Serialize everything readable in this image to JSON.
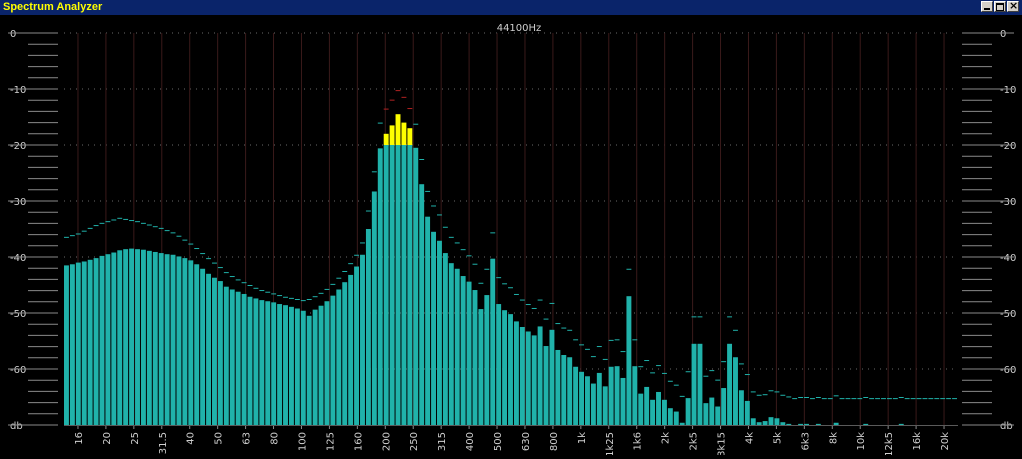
{
  "window": {
    "title": "Spectrum Analyzer",
    "buttons": [
      "minimize",
      "maximize",
      "close"
    ]
  },
  "colors": {
    "background": "#000000",
    "bar": "#20b2aa",
    "bar_top": "#1cc7c0",
    "clip": "#ffff00",
    "peak": "#20b2aa",
    "peak_hot": "#b22222",
    "grid": "#3a3a3a",
    "vgrid": "#3a1a1a",
    "label": "#d0d0d0",
    "title_bg": "#0a246a",
    "title_fg": "#ffff00"
  },
  "chart_data": {
    "type": "bar",
    "sample_rate_label": "44100Hz",
    "ylim": [
      -70,
      0
    ],
    "y_ticks": [
      "0",
      "-10",
      "-20",
      "-30",
      "-40",
      "-50",
      "-60",
      "db"
    ],
    "y_tick_values": [
      0,
      -10,
      -20,
      -30,
      -40,
      -50,
      -60,
      -70
    ],
    "clip_threshold": -20,
    "x_ticks": [
      "16",
      "20",
      "25",
      "31.5",
      "40",
      "50",
      "63",
      "80",
      "100",
      "125",
      "160",
      "200",
      "250",
      "315",
      "400",
      "500",
      "630",
      "800",
      "1k",
      "1k25",
      "1k6",
      "2k",
      "2k5",
      "3k15",
      "4k",
      "5k",
      "6k3",
      "8k",
      "10k",
      "12k5",
      "16k",
      "20k"
    ],
    "values": [
      -41.5,
      -41.3,
      -41,
      -40.8,
      -40.5,
      -40.2,
      -39.8,
      -39.5,
      -39.2,
      -38.8,
      -38.6,
      -38.5,
      -38.6,
      -38.7,
      -38.9,
      -39.1,
      -39.3,
      -39.5,
      -39.6,
      -39.9,
      -40.2,
      -40.6,
      -41.3,
      -42.1,
      -43,
      -43.7,
      -44.3,
      -45.3,
      -45.8,
      -46.2,
      -46.6,
      -47.1,
      -47.4,
      -47.7,
      -47.9,
      -48.1,
      -48.4,
      -48.6,
      -48.9,
      -49.2,
      -49.6,
      -50.5,
      -49.4,
      -48.7,
      -47.9,
      -46.9,
      -45.8,
      -44.5,
      -43.2,
      -41.7,
      -39.6,
      -35,
      -28.3,
      -20.6,
      -18,
      -16.5,
      -14.5,
      -16,
      -17,
      -20.5,
      -27,
      -32.8,
      -35.5,
      -37.1,
      -39.3,
      -41.1,
      -42.1,
      -43.4,
      -44.4,
      -45.9,
      -49.3,
      -46.8,
      -40.3,
      -48.4,
      -49.5,
      -50.2,
      -51.5,
      -52.5,
      -53.3,
      -54,
      -52.4,
      -55.9,
      -53,
      -56.6,
      -57.5,
      -57.9,
      -59.6,
      -60.5,
      -61.3,
      -62.6,
      -60.7,
      -63.1,
      -59.6,
      -59.5,
      -61.6,
      -47,
      -59.5,
      -64.4,
      -63.2,
      -65.5,
      -64.1,
      -65.5,
      -67,
      -67.6,
      -69.6,
      -65.2,
      -55.5,
      -55.5,
      -66.1,
      -65.1,
      -66.7,
      -63.4,
      -55.5,
      -57.9,
      -63.8,
      -65.7,
      -68.8,
      -69.5,
      -69.3,
      -68.6,
      -68.8,
      -69.5,
      -69.8,
      -70,
      -69.8,
      -69.8,
      -70,
      -69.8,
      -70,
      -70,
      -69.6,
      -70,
      -70,
      -70,
      -70,
      -69.8,
      -70,
      -70,
      -70,
      -70,
      -70,
      -69.8,
      -70,
      -70,
      -70,
      -70,
      -70,
      -70,
      -70,
      -70,
      -70
    ],
    "peaks": [
      -36.4,
      -36.1,
      -35.8,
      -35.3,
      -34.8,
      -34.3,
      -33.9,
      -33.6,
      -33.3,
      -33,
      -33.2,
      -33.4,
      -33.6,
      -33.9,
      -34.2,
      -34.5,
      -34.8,
      -35.2,
      -35.6,
      -36.2,
      -36.9,
      -37.6,
      -38.4,
      -39.3,
      -40.2,
      -41,
      -41.8,
      -42.7,
      -43.4,
      -44,
      -44.5,
      -45,
      -45.5,
      -45.9,
      -46.2,
      -46.5,
      -46.8,
      -47.1,
      -47.3,
      -47.5,
      -47.7,
      -47.5,
      -47,
      -46.4,
      -45.7,
      -44.8,
      -43.7,
      -42.5,
      -41.1,
      -39.6,
      -37.4,
      -31.7,
      -24.7,
      -16,
      -13.5,
      -11.9,
      -10.2,
      -11.4,
      -13.4,
      -16.2,
      -22.5,
      -28.2,
      -30.8,
      -32.4,
      -34.6,
      -36.4,
      -37.4,
      -38.6,
      -39.7,
      -41.2,
      -44.6,
      -42.1,
      -35.6,
      -43.6,
      -44.7,
      -45.4,
      -46.6,
      -47.6,
      -48.4,
      -49.1,
      -47.6,
      -51,
      -48.2,
      -51.8,
      -52.6,
      -53,
      -54.7,
      -55.6,
      -56.4,
      -57.7,
      -55.9,
      -58.2,
      -54.8,
      -54.7,
      -56.8,
      -42.1,
      -54.7,
      -59.5,
      -58.4,
      -60.6,
      -59.3,
      -60.7,
      -62.1,
      -62.8,
      -64.8,
      -60.4,
      -50.6,
      -50.6,
      -61.2,
      -60.2,
      -61.9,
      -58.6,
      -50.6,
      -53,
      -59,
      -60.9,
      -64,
      -64.6,
      -64.5,
      -63.8,
      -64,
      -64.6,
      -64.9,
      -65.2,
      -65,
      -65,
      -65.2,
      -65,
      -65.2,
      -65.2,
      -64.7,
      -65.2,
      -65.2,
      -65.2,
      -65.2,
      -65,
      -65.2,
      -65.2,
      -65.2,
      -65.2,
      -65.2,
      -65,
      -65.2,
      -65.2,
      -65.2,
      -65.2,
      -65.2,
      -65.2,
      -65.2,
      -65.2,
      -65.2
    ]
  }
}
